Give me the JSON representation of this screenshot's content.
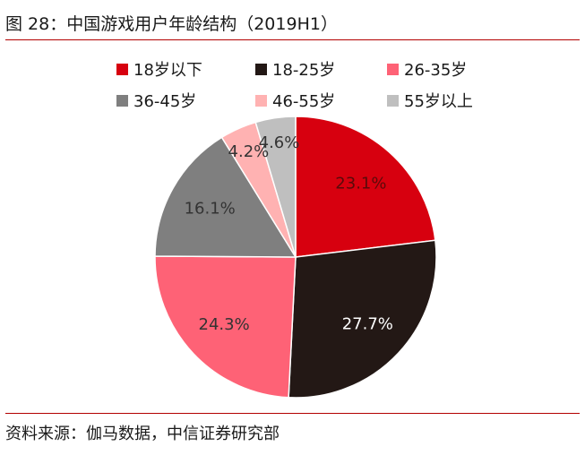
{
  "figure": {
    "title": "图 28：中国游戏用户年龄结构（2019H1）",
    "source": "资料来源：伽马数据，中信证券研究部"
  },
  "chart_data": {
    "type": "pie",
    "title": "中国游戏用户年龄结构（2019H1）",
    "categories": [
      "18岁以下",
      "18-25岁",
      "26-35岁",
      "36-45岁",
      "46-55岁",
      "55岁以上"
    ],
    "values": [
      23.1,
      27.7,
      24.3,
      16.1,
      4.2,
      4.6
    ],
    "value_labels": [
      "23.1%",
      "27.7%",
      "24.3%",
      "16.1%",
      "4.2%",
      "4.6%"
    ],
    "colors": [
      "#d7000f",
      "#231815",
      "#fe6276",
      "#7f7f7f",
      "#ffb2b2",
      "#bfbfbf"
    ],
    "label_colors": [
      "#5b0a0a",
      "#ffffff",
      "#333333",
      "#333333",
      "#333333",
      "#333333"
    ],
    "start_angle_deg": 0,
    "direction": "clockwise",
    "legend_position": "top"
  }
}
